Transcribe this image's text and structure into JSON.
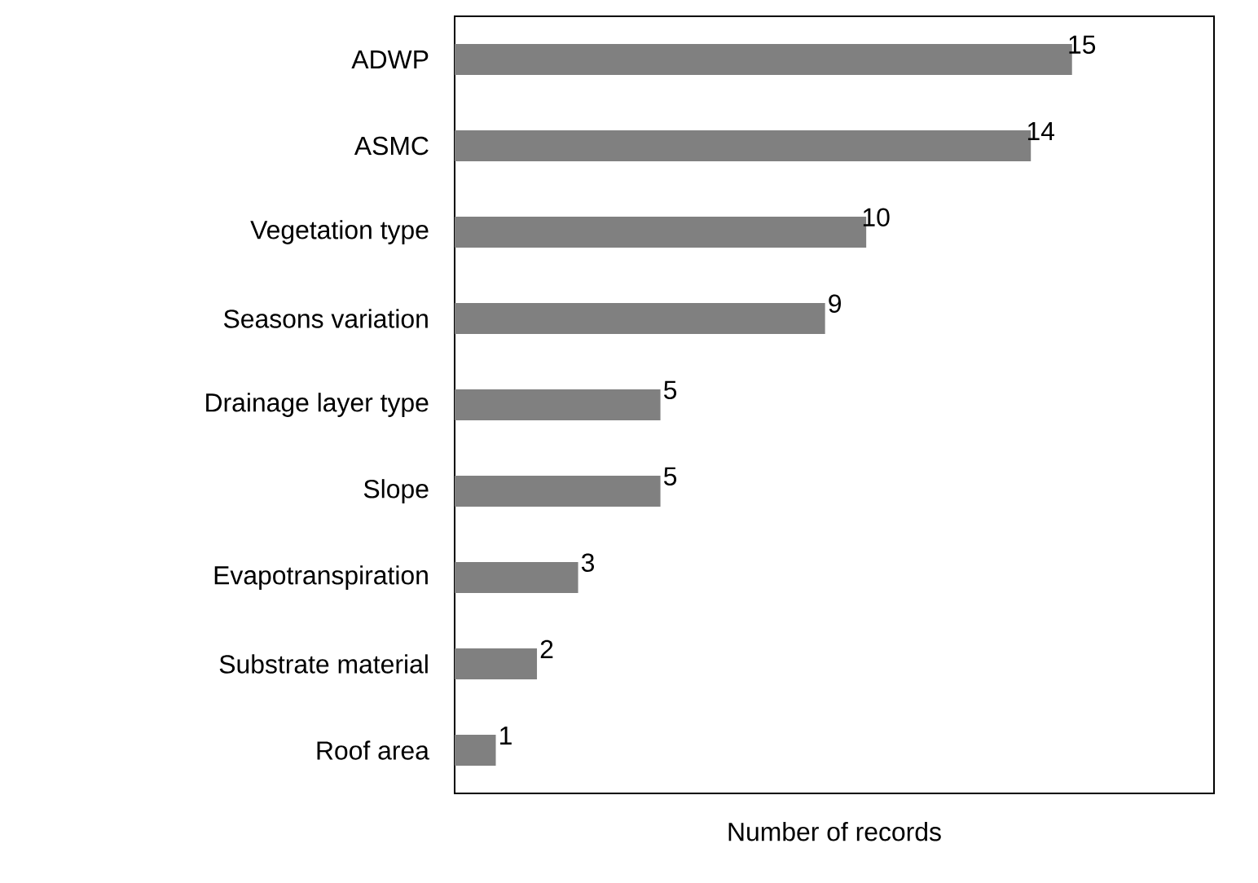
{
  "chart_data": {
    "type": "bar",
    "orientation": "horizontal",
    "xlabel": "Number of records",
    "categories": [
      "ADWP",
      "ASMC",
      "Vegetation type",
      "Seasons variation",
      "Drainage layer type",
      "Slope",
      "Evapotranspiration",
      "Substrate material",
      "Roof area"
    ],
    "values": [
      15,
      14,
      10,
      9,
      5,
      5,
      3,
      2,
      1
    ],
    "color": "#808080",
    "data_labels": true,
    "tick_labels": "y"
  }
}
